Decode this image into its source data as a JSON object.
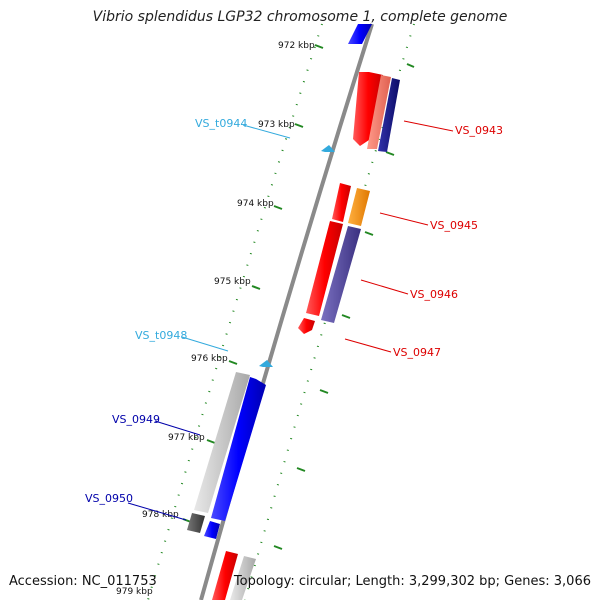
{
  "title": "Vibrio splendidus LGP32 chromosome 1, complete genome",
  "accession": "Accession: NC_011753",
  "summary": "Topology: circular; Length: 3,299,302 bp; Genes: 3,066",
  "ticks": [
    "972 kbp",
    "973 kbp",
    "974 kbp",
    "975 kbp",
    "976 kbp",
    "977 kbp",
    "978 kbp",
    "979 kbp"
  ],
  "labels": {
    "vs0943": "VS_0943",
    "vs0945": "VS_0945",
    "vs0946": "VS_0946",
    "vs0947": "VS_0947",
    "t0944": "VS_t0944",
    "t0948": "VS_t0948",
    "vs0949": "VS_0949",
    "vs0950": "VS_0950"
  },
  "colors": {
    "red": "#ff0000",
    "salmon": "#f47766",
    "navy": "#111188",
    "orange": "#ff8c00",
    "slate": "#5a4fa0",
    "blue": "#0000ff",
    "grey": "#c8c8c8",
    "darkgrey": "#555555",
    "cyan": "#33aadd",
    "green": "#228822",
    "backbone": "#888888"
  }
}
